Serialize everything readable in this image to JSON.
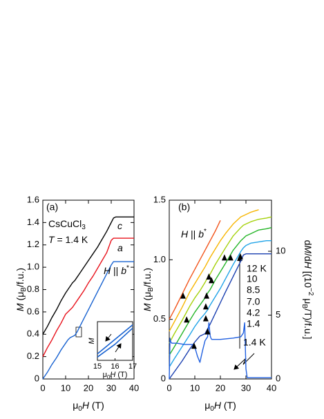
{
  "chart_data": [
    {
      "type": "line",
      "label": "(a)",
      "title": [
        {
          "t": "CsCuCl"
        },
        {
          "t": "3",
          "s": "sub"
        }
      ],
      "subtitle": [
        {
          "t": "T",
          "s": "it"
        },
        {
          "t": " = 1.4 K"
        }
      ],
      "x_label": [
        {
          "t": "μ"
        },
        {
          "t": "0",
          "s": "sub"
        },
        {
          "t": "H",
          "s": "it"
        },
        {
          "t": " (T)"
        }
      ],
      "y_label": [
        {
          "t": "M",
          "s": "it"
        },
        {
          "t": " (μ"
        },
        {
          "t": "B",
          "s": "sub"
        },
        {
          "t": "/f.u.)"
        }
      ],
      "xlim": [
        0,
        40
      ],
      "xticks": [
        0,
        10,
        20,
        30,
        40
      ],
      "ylim": [
        0,
        1.6
      ],
      "yticks": [
        0,
        0.2,
        0.4,
        0.6,
        0.8,
        {
          "value": 1,
          "label": "1.0"
        },
        1.2,
        1.4,
        1.6
      ],
      "x": [
        0,
        2,
        4,
        6,
        8,
        10,
        11,
        12,
        13,
        14,
        15,
        16,
        18,
        20,
        22,
        24,
        26,
        28,
        30,
        31,
        32,
        34,
        36,
        38,
        40
      ],
      "series": [
        {
          "name": [
            {
              "t": "c",
              "s": "it"
            }
          ],
          "color": "#000000",
          "values": [
            0.4,
            0.47,
            0.55,
            0.62,
            0.7,
            0.77,
            0.8,
            0.83,
            0.86,
            0.88,
            0.91,
            0.94,
            1.0,
            1.06,
            1.12,
            1.18,
            1.25,
            1.32,
            1.4,
            1.44,
            1.45,
            1.45,
            1.45,
            1.45,
            1.45
          ]
        },
        {
          "name": [
            {
              "t": "a",
              "s": "it"
            }
          ],
          "color": "#e8101a",
          "values": [
            0.2,
            0.28,
            0.35,
            0.43,
            0.5,
            0.58,
            0.6,
            0.62,
            0.64,
            0.67,
            0.7,
            0.73,
            0.79,
            0.86,
            0.92,
            0.99,
            1.06,
            1.13,
            1.24,
            1.26,
            1.26,
            1.26,
            1.26,
            1.26,
            1.26
          ]
        },
        {
          "name": [
            {
              "t": "H",
              "s": "it"
            },
            {
              "t": " || "
            },
            {
              "t": "b",
              "s": "it"
            },
            {
              "t": "*",
              "s": "sup"
            }
          ],
          "color": "#1560d0",
          "values": [
            0,
            0.06,
            0.13,
            0.19,
            0.26,
            0.32,
            0.35,
            0.37,
            0.38,
            0.39,
            0.42,
            0.46,
            0.54,
            0.62,
            0.7,
            0.78,
            0.86,
            0.94,
            1.02,
            1.05,
            1.05,
            1.05,
            1.05,
            1.05,
            1.05
          ]
        }
      ],
      "inset": {
        "x_label": [
          {
            "t": "μ"
          },
          {
            "t": "0",
            "s": "sub"
          },
          {
            "t": "H",
            "s": "it"
          },
          {
            "t": " (T)"
          }
        ],
        "y_label": [
          {
            "t": "M",
            "s": "it"
          }
        ],
        "xlim": [
          15,
          17
        ],
        "xticks": [
          15,
          16,
          17
        ],
        "ylim": [
          0.36,
          0.48
        ],
        "x": [
          15,
          16,
          17
        ],
        "series": [
          {
            "color": "#1560d0",
            "values": [
              0.37,
              0.41,
              0.46
            ]
          },
          {
            "color": "#1560d0",
            "values": [
              0.38,
              0.425,
              0.47
            ]
          }
        ]
      }
    },
    {
      "type": "line",
      "label": "(b)",
      "annotation": [
        {
          "t": "H",
          "s": "it"
        },
        {
          "t": " || "
        },
        {
          "t": "b",
          "s": "it"
        },
        {
          "t": "*",
          "s": "sup"
        }
      ],
      "x_label": [
        {
          "t": "μ"
        },
        {
          "t": "0",
          "s": "sub"
        },
        {
          "t": "H",
          "s": "it"
        },
        {
          "t": " (T)"
        }
      ],
      "y_label": [
        {
          "t": "M",
          "s": "it"
        },
        {
          "t": " (μ"
        },
        {
          "t": "B",
          "s": "sub"
        },
        {
          "t": "/f.u.)"
        }
      ],
      "y2_label": [
        {
          "t": "d"
        },
        {
          "t": "M",
          "s": "it"
        },
        {
          "t": "/d"
        },
        {
          "t": "H",
          "s": "it"
        },
        {
          "t": " [(10"
        },
        {
          "t": "−2",
          "s": "sup"
        },
        {
          "t": " μ"
        },
        {
          "t": "B",
          "s": "sub"
        },
        {
          "t": "/T)/f.u.]"
        }
      ],
      "xlim": [
        0,
        40
      ],
      "xticks": [
        0,
        10,
        20,
        30,
        40
      ],
      "ylim": [
        0,
        1.5
      ],
      "yticks": [
        0,
        0.5,
        {
          "value": 1,
          "label": "1.0"
        },
        1.5
      ],
      "y2lim": [
        0,
        14
      ],
      "y2ticks": [
        0,
        5,
        10
      ],
      "x": [
        0,
        2,
        5,
        8,
        10,
        12,
        14,
        15,
        16,
        18,
        20,
        22,
        25,
        28,
        29,
        30,
        32,
        35,
        38,
        40
      ],
      "series": [
        {
          "name": "1.4",
          "color": "#1a3fb0",
          "values": [
            0,
            0.06,
            0.15,
            0.25,
            0.31,
            0.36,
            0.38,
            0.42,
            0.46,
            0.55,
            0.64,
            0.73,
            0.86,
            0.99,
            1.04,
            1.05,
            1.05,
            1.05,
            1.05,
            1.05
          ]
        },
        {
          "name": "4.2",
          "color": "#1fa3e8",
          "values": [
            0.1,
            0.17,
            0.27,
            0.37,
            0.44,
            0.5,
            0.55,
            0.58,
            0.62,
            0.69,
            0.76,
            0.84,
            0.96,
            1.07,
            1.1,
            1.12,
            1.14,
            1.15,
            1.16,
            1.16
          ]
        },
        {
          "name": "7.0",
          "color": "#23b526",
          "values": [
            0.2,
            0.27,
            0.38,
            0.49,
            0.56,
            0.62,
            0.68,
            0.72,
            0.75,
            0.83,
            0.9,
            0.97,
            1.08,
            1.16,
            1.18,
            1.2,
            1.22,
            1.25,
            1.26,
            1.27
          ]
        },
        {
          "name": "8.5",
          "color": "#a5d10a",
          "values": [
            0.3,
            0.38,
            0.49,
            0.61,
            0.68,
            0.74,
            0.81,
            0.85,
            0.88,
            0.96,
            1.03,
            1.1,
            1.2,
            1.27,
            1.29,
            1.3,
            1.32,
            1.34,
            1.35,
            1.36
          ]
        },
        {
          "name": "10",
          "color": "#f7b500",
          "values": [
            0.4,
            0.48,
            0.6,
            0.73,
            0.8,
            0.87,
            0.94,
            0.98,
            1.02,
            1.09,
            1.16,
            1.22,
            1.3,
            1.36,
            1.37,
            1.38,
            1.4,
            1.42,
            null,
            null
          ]
        },
        {
          "name": "12 K",
          "color": "#f2541b",
          "values": [
            0.5,
            0.58,
            0.71,
            0.84,
            0.92,
            1.0,
            1.08,
            1.12,
            1.16,
            1.24,
            1.33,
            null,
            null,
            null,
            null,
            null,
            null,
            null,
            null,
            null
          ]
        },
        {
          "name": "1.4 K",
          "color": "#1f5fe0",
          "axis": "y2",
          "x": [
            0,
            0.3,
            0.6,
            1,
            3,
            6,
            9,
            10,
            11,
            12,
            13,
            14,
            15,
            15.5,
            16,
            16.3,
            16.6,
            17,
            20,
            25,
            28,
            29,
            29.5,
            30,
            30.5,
            32,
            35,
            40
          ],
          "values": [
            0,
            3.2,
            2.9,
            2.8,
            2.8,
            2.7,
            2.7,
            2.5,
            1.8,
            1.3,
            2.2,
            3.0,
            3.3,
            4.4,
            3.4,
            3.2,
            3.1,
            3.1,
            3.1,
            3.2,
            3.3,
            3.6,
            4.4,
            0.8,
            0.1,
            0.1,
            0.1,
            0.1
          ]
        }
      ],
      "triangles": {
        "x": [
          5.4,
          6.8,
          9.7,
          14.3,
          15.0,
          14.3,
          14.6,
          16.5,
          15.5,
          21.6,
          24.0,
          27.8
        ],
        "y": [
          0.72,
          0.52,
          0.3,
          0.53,
          0.42,
          0.63,
          0.72,
          0.85,
          0.88,
          1.04,
          1.04,
          1.05
        ]
      }
    }
  ]
}
